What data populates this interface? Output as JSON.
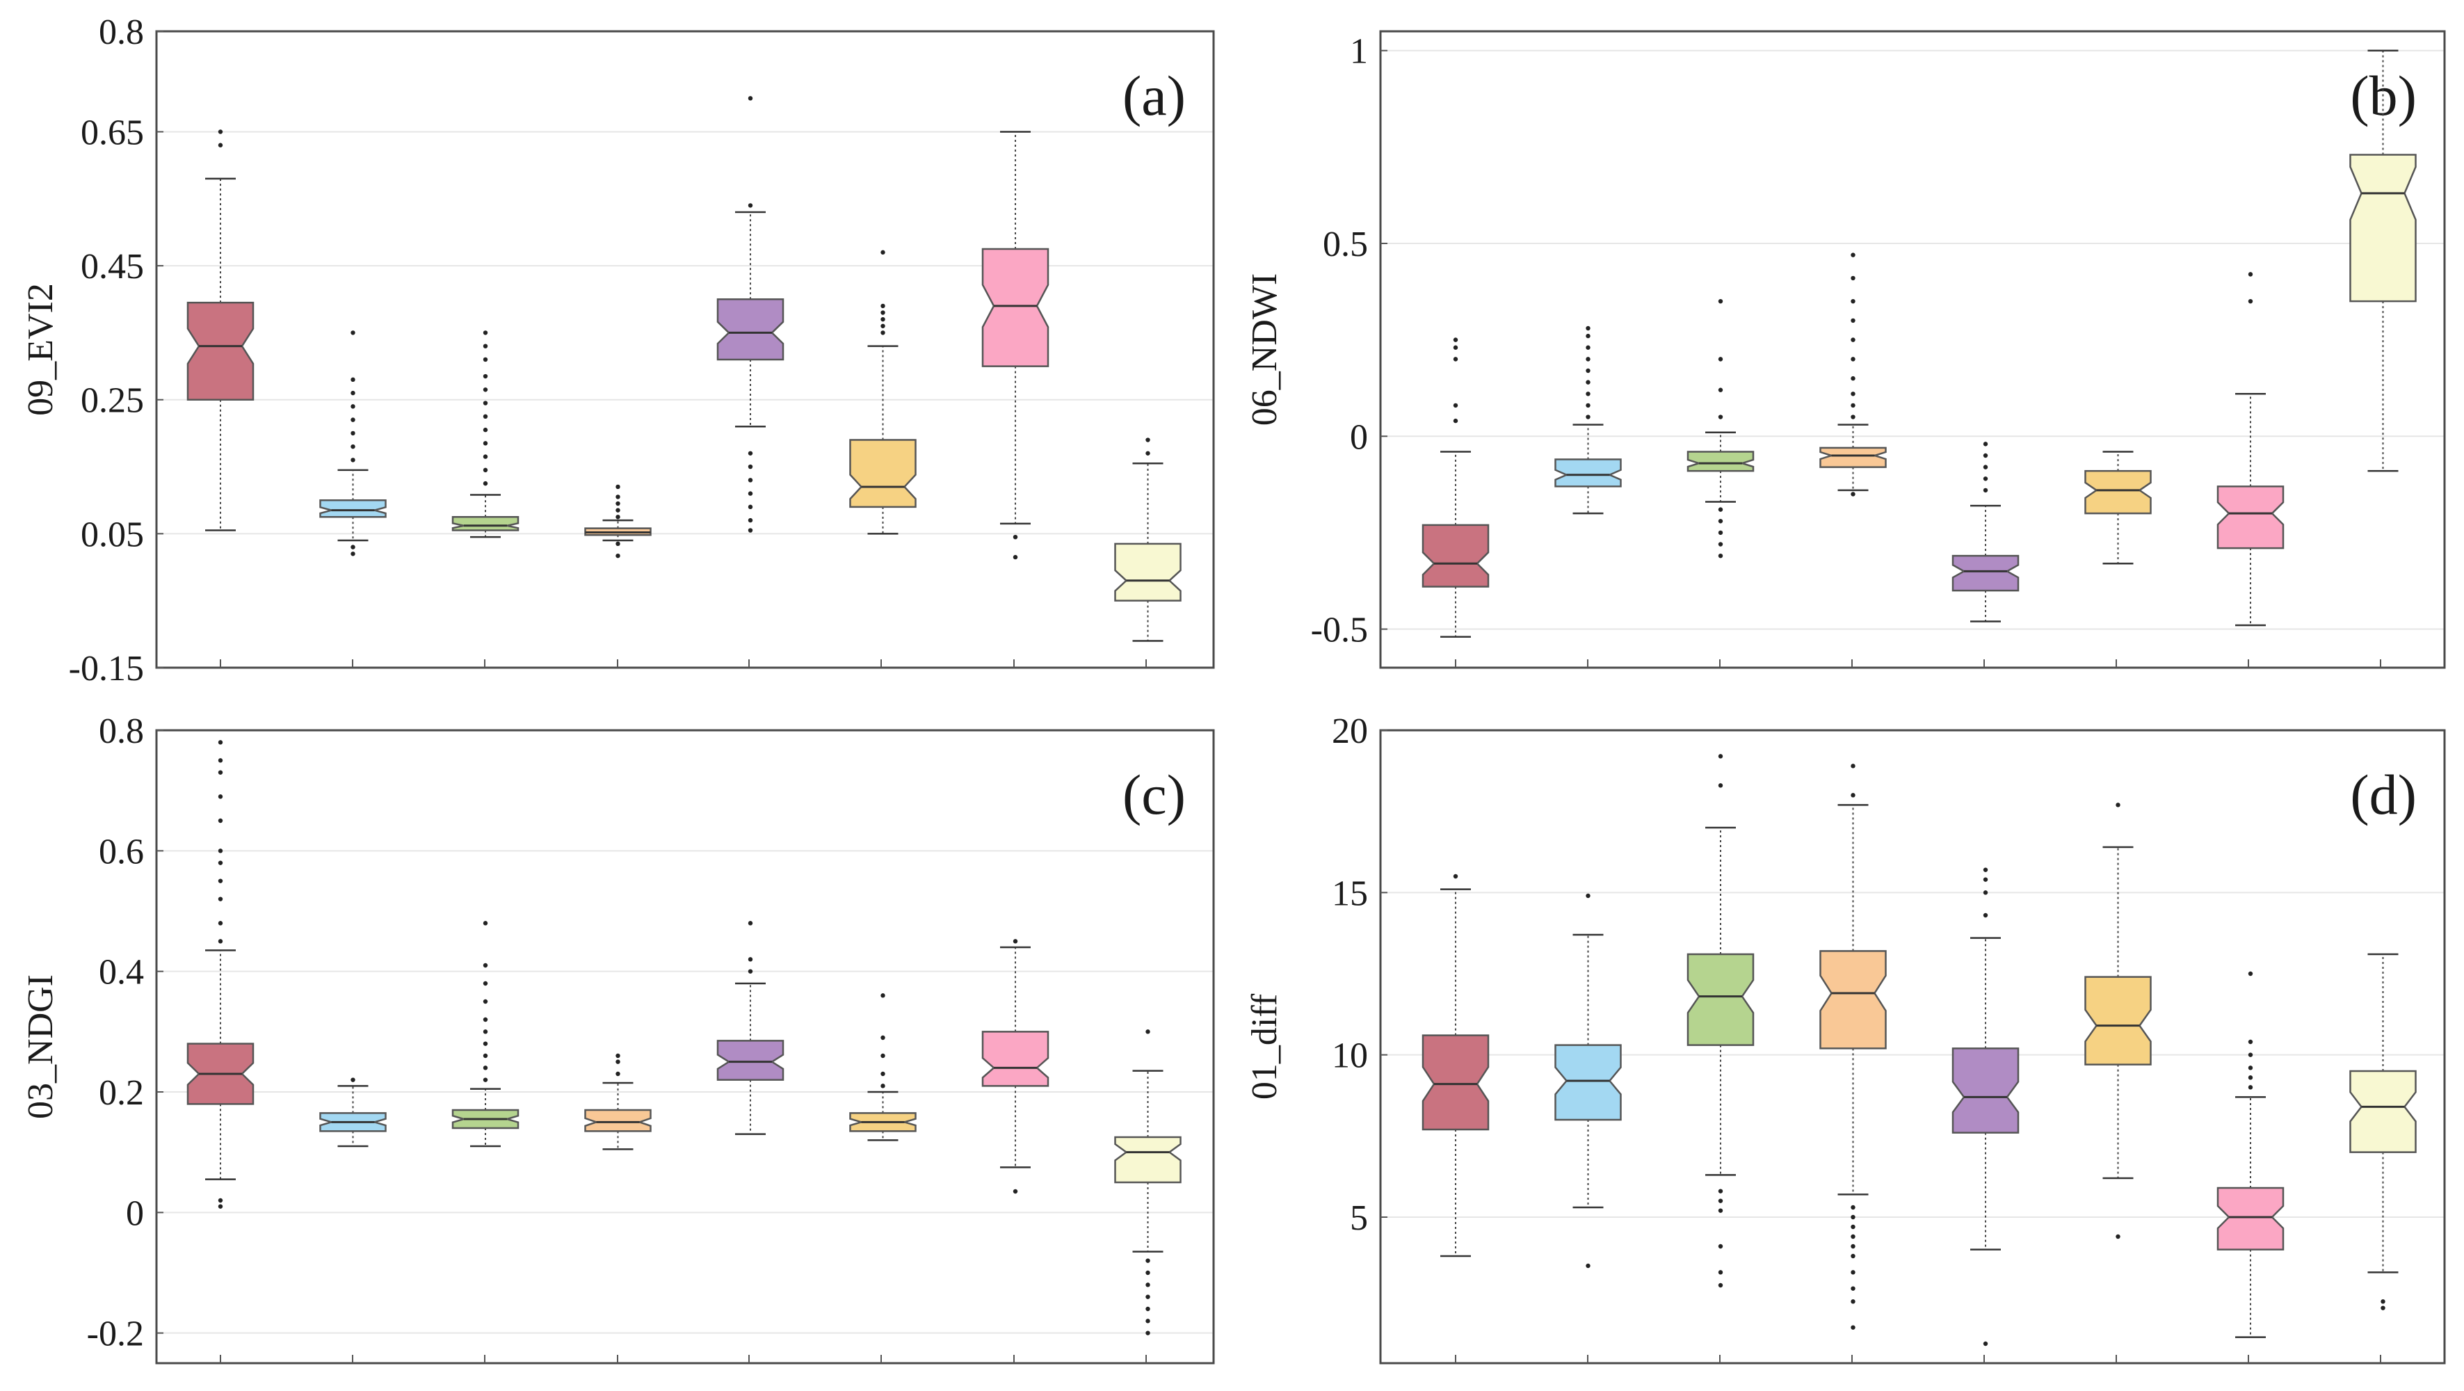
{
  "colors": {
    "groups": [
      "#c97380",
      "#a3d8f2",
      "#b5d48f",
      "#f9c896",
      "#b08cc4",
      "#f6d283",
      "#fba7c4",
      "#f8f8d2"
    ]
  },
  "chart_data": [
    {
      "type": "box",
      "panel_label": "(a)",
      "ylabel": "09_EVI2",
      "ylim": [
        -0.15,
        0.8
      ],
      "yticks": [
        -0.15,
        0.05,
        0.25,
        0.45,
        0.65,
        0.8
      ],
      "ytick_labels": [
        "-0.15",
        "0.05",
        "0.25",
        "0.45",
        "0.65",
        "0.8"
      ],
      "grid": true,
      "notched": true,
      "boxes": [
        {
          "whisker_low": 0.055,
          "q1": 0.25,
          "median": 0.33,
          "q3": 0.395,
          "whisker_high": 0.58,
          "outliers": [
            0.63,
            0.65
          ]
        },
        {
          "whisker_low": 0.04,
          "q1": 0.075,
          "median": 0.085,
          "q3": 0.1,
          "whisker_high": 0.145,
          "outliers": [
            0.03,
            0.02,
            0.16,
            0.18,
            0.2,
            0.22,
            0.24,
            0.26,
            0.28,
            0.35
          ]
        },
        {
          "whisker_low": 0.045,
          "q1": 0.055,
          "median": 0.062,
          "q3": 0.075,
          "whisker_high": 0.108,
          "outliers": [
            0.125,
            0.145,
            0.165,
            0.185,
            0.205,
            0.225,
            0.245,
            0.265,
            0.285,
            0.31,
            0.33,
            0.35
          ]
        },
        {
          "whisker_low": 0.04,
          "q1": 0.048,
          "median": 0.052,
          "q3": 0.058,
          "whisker_high": 0.07,
          "outliers": [
            0.035,
            0.017,
            0.075,
            0.085,
            0.095,
            0.105,
            0.12
          ]
        },
        {
          "whisker_low": 0.21,
          "q1": 0.31,
          "median": 0.35,
          "q3": 0.4,
          "whisker_high": 0.53,
          "outliers": [
            0.055,
            0.07,
            0.09,
            0.11,
            0.13,
            0.15,
            0.17,
            0.54,
            0.7
          ]
        },
        {
          "whisker_low": 0.05,
          "q1": 0.09,
          "median": 0.12,
          "q3": 0.19,
          "whisker_high": 0.33,
          "outliers": [
            0.35,
            0.36,
            0.37,
            0.38,
            0.39,
            0.47
          ]
        },
        {
          "whisker_low": 0.065,
          "q1": 0.3,
          "median": 0.39,
          "q3": 0.475,
          "whisker_high": 0.65,
          "outliers": [
            0.015,
            0.045
          ]
        },
        {
          "whisker_low": -0.11,
          "q1": -0.05,
          "median": -0.02,
          "q3": 0.035,
          "whisker_high": 0.155,
          "outliers": [
            0.17,
            0.19
          ]
        }
      ]
    },
    {
      "type": "box",
      "panel_label": "(b)",
      "ylabel": "06_NDWI",
      "ylim": [
        -0.6,
        1.05
      ],
      "yticks": [
        -0.5,
        0,
        0.5,
        1
      ],
      "ytick_labels": [
        "-0.5",
        "0",
        "0.5",
        "1"
      ],
      "grid": true,
      "notched": true,
      "boxes": [
        {
          "whisker_low": -0.52,
          "q1": -0.39,
          "median": -0.33,
          "q3": -0.23,
          "whisker_high": -0.04,
          "outliers": [
            0.04,
            0.08,
            0.2,
            0.23,
            0.25
          ]
        },
        {
          "whisker_low": -0.2,
          "q1": -0.13,
          "median": -0.1,
          "q3": -0.06,
          "whisker_high": 0.03,
          "outliers": [
            0.05,
            0.08,
            0.11,
            0.14,
            0.17,
            0.2,
            0.23,
            0.26,
            0.28
          ]
        },
        {
          "whisker_low": -0.17,
          "q1": -0.09,
          "median": -0.07,
          "q3": -0.04,
          "whisker_high": 0.01,
          "outliers": [
            -0.19,
            -0.22,
            -0.25,
            -0.28,
            -0.31,
            0.05,
            0.12,
            0.2,
            0.35
          ]
        },
        {
          "whisker_low": -0.14,
          "q1": -0.08,
          "median": -0.05,
          "q3": -0.03,
          "whisker_high": 0.03,
          "outliers": [
            -0.15,
            0.05,
            0.08,
            0.11,
            0.15,
            0.2,
            0.25,
            0.3,
            0.35,
            0.41,
            0.47
          ]
        },
        {
          "whisker_low": -0.48,
          "q1": -0.4,
          "median": -0.35,
          "q3": -0.31,
          "whisker_high": -0.18,
          "outliers": [
            -0.02,
            -0.05,
            -0.08,
            -0.11,
            -0.14
          ]
        },
        {
          "whisker_low": -0.33,
          "q1": -0.2,
          "median": -0.14,
          "q3": -0.09,
          "whisker_high": -0.04,
          "outliers": []
        },
        {
          "whisker_low": -0.49,
          "q1": -0.29,
          "median": -0.2,
          "q3": -0.13,
          "whisker_high": 0.11,
          "outliers": [
            0.35,
            0.42
          ]
        },
        {
          "whisker_low": -0.09,
          "q1": 0.35,
          "median": 0.63,
          "q3": 0.73,
          "whisker_high": 1.0,
          "outliers": []
        }
      ]
    },
    {
      "type": "box",
      "panel_label": "(c)",
      "ylabel": "03_NDGI",
      "ylim": [
        -0.25,
        0.8
      ],
      "yticks": [
        -0.2,
        0,
        0.2,
        0.4,
        0.6,
        0.8
      ],
      "ytick_labels": [
        "-0.2",
        "0",
        "0.2",
        "0.4",
        "0.6",
        "0.8"
      ],
      "grid": true,
      "notched": true,
      "boxes": [
        {
          "whisker_low": 0.055,
          "q1": 0.18,
          "median": 0.23,
          "q3": 0.28,
          "whisker_high": 0.435,
          "outliers": [
            0.01,
            0.02,
            0.45,
            0.48,
            0.52,
            0.55,
            0.58,
            0.6,
            0.65,
            0.69,
            0.73,
            0.75,
            0.78
          ]
        },
        {
          "whisker_low": 0.11,
          "q1": 0.135,
          "median": 0.15,
          "q3": 0.165,
          "whisker_high": 0.21,
          "outliers": [
            0.22
          ]
        },
        {
          "whisker_low": 0.11,
          "q1": 0.14,
          "median": 0.155,
          "q3": 0.17,
          "whisker_high": 0.205,
          "outliers": [
            0.22,
            0.24,
            0.26,
            0.28,
            0.3,
            0.32,
            0.35,
            0.38,
            0.41,
            0.48
          ]
        },
        {
          "whisker_low": 0.105,
          "q1": 0.135,
          "median": 0.15,
          "q3": 0.17,
          "whisker_high": 0.215,
          "outliers": [
            0.23,
            0.25,
            0.26
          ]
        },
        {
          "whisker_low": 0.13,
          "q1": 0.22,
          "median": 0.25,
          "q3": 0.285,
          "whisker_high": 0.38,
          "outliers": [
            0.4,
            0.42,
            0.48
          ]
        },
        {
          "whisker_low": 0.12,
          "q1": 0.135,
          "median": 0.15,
          "q3": 0.165,
          "whisker_high": 0.2,
          "outliers": [
            0.21,
            0.23,
            0.26,
            0.29,
            0.36
          ]
        },
        {
          "whisker_low": 0.075,
          "q1": 0.21,
          "median": 0.24,
          "q3": 0.3,
          "whisker_high": 0.44,
          "outliers": [
            0.035,
            0.45
          ]
        },
        {
          "whisker_low": -0.065,
          "q1": 0.05,
          "median": 0.1,
          "q3": 0.125,
          "whisker_high": 0.235,
          "outliers": [
            -0.08,
            -0.1,
            -0.12,
            -0.14,
            -0.16,
            -0.18,
            -0.2,
            0.3
          ]
        }
      ]
    },
    {
      "type": "box",
      "panel_label": "(d)",
      "ylabel": "01_diff",
      "ylim": [
        0.5,
        20.0
      ],
      "yticks": [
        5,
        10,
        15,
        20
      ],
      "ytick_labels": [
        "5",
        "10",
        "15",
        "20"
      ],
      "grid": true,
      "notched": true,
      "boxes": [
        {
          "whisker_low": 3.8,
          "q1": 7.7,
          "median": 9.1,
          "q3": 10.6,
          "whisker_high": 15.1,
          "outliers": [
            15.5
          ]
        },
        {
          "whisker_low": 5.3,
          "q1": 8.0,
          "median": 9.2,
          "q3": 10.3,
          "whisker_high": 13.7,
          "outliers": [
            3.5,
            14.9
          ]
        },
        {
          "whisker_low": 6.3,
          "q1": 10.3,
          "median": 11.8,
          "q3": 13.1,
          "whisker_high": 17.0,
          "outliers": [
            2.9,
            3.3,
            4.1,
            5.2,
            5.5,
            5.8,
            18.3,
            19.2
          ]
        },
        {
          "whisker_low": 5.7,
          "q1": 10.2,
          "median": 11.9,
          "q3": 13.2,
          "whisker_high": 17.7,
          "outliers": [
            1.6,
            2.4,
            2.8,
            3.3,
            3.8,
            4.1,
            4.4,
            4.7,
            5.0,
            5.3,
            18.0,
            18.9
          ]
        },
        {
          "whisker_low": 4.0,
          "q1": 7.6,
          "median": 8.7,
          "q3": 10.2,
          "whisker_high": 13.6,
          "outliers": [
            1.1,
            14.3,
            15.0,
            15.4,
            15.7
          ]
        },
        {
          "whisker_low": 6.2,
          "q1": 9.7,
          "median": 10.9,
          "q3": 12.4,
          "whisker_high": 16.4,
          "outliers": [
            4.4,
            17.7
          ]
        },
        {
          "whisker_low": 1.3,
          "q1": 4.0,
          "median": 5.0,
          "q3": 5.9,
          "whisker_high": 8.7,
          "outliers": [
            9.0,
            9.3,
            9.6,
            10.0,
            10.4,
            12.5
          ]
        },
        {
          "whisker_low": 3.3,
          "q1": 7.0,
          "median": 8.4,
          "q3": 9.5,
          "whisker_high": 13.1,
          "outliers": [
            2.2,
            2.4
          ]
        }
      ]
    }
  ]
}
